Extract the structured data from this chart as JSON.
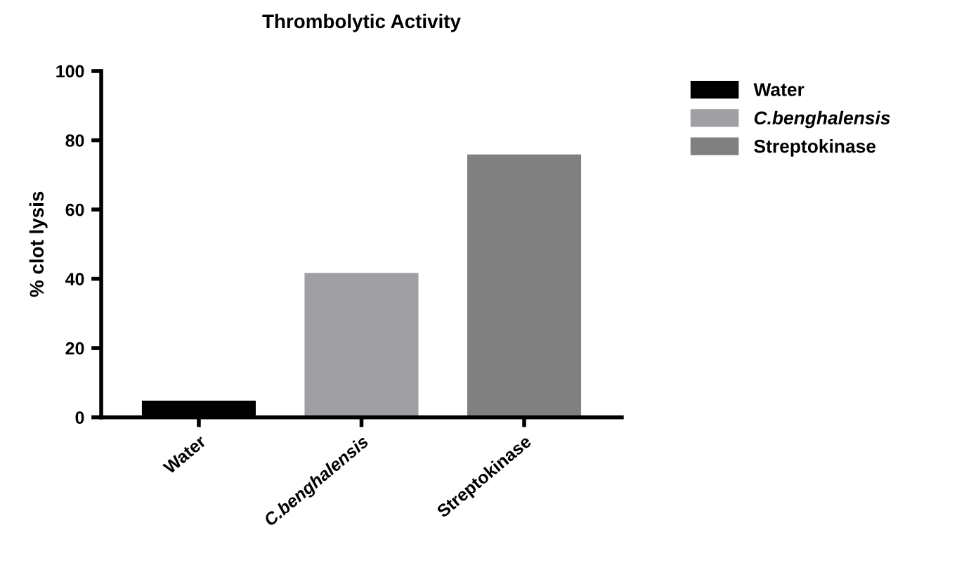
{
  "chart_data": {
    "type": "bar",
    "title": "Thrombolytic Activity",
    "ylabel": "% clot lysis",
    "categories": [
      "Water",
      "C.benghalensis",
      "Streptokinase"
    ],
    "series": [
      {
        "name": "Water",
        "color": "#000000",
        "values": [
          4.8,
          null,
          null
        ]
      },
      {
        "name": "C.benghalensis",
        "color": "#a0a0a4",
        "values": [
          null,
          41.7,
          null
        ]
      },
      {
        "name": "Streptokinase",
        "color": "#808080",
        "values": [
          null,
          null,
          75.9
        ]
      }
    ],
    "ylim": [
      0,
      100
    ],
    "yticks": [
      0,
      20,
      40,
      60,
      80,
      100
    ],
    "grid": false,
    "legend": "top right"
  }
}
